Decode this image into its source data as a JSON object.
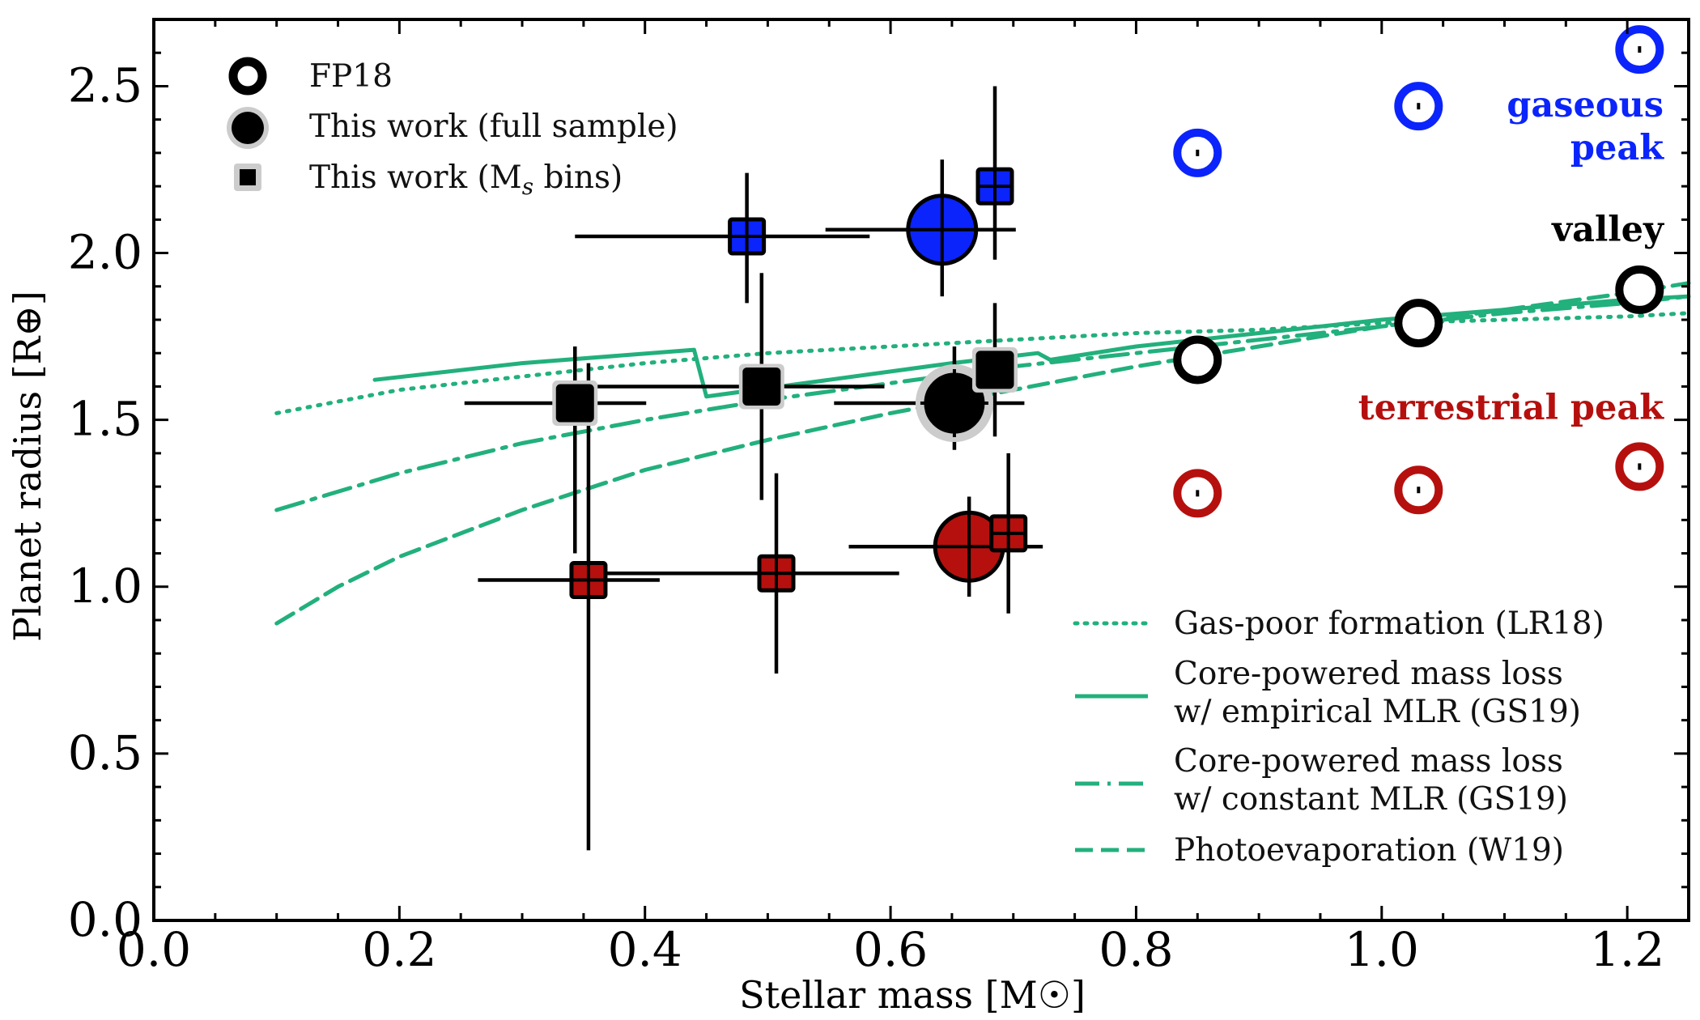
{
  "chart_data": {
    "type": "scatter",
    "xlabel": "Stellar mass [M☉]",
    "ylabel": "Planet radius [R⊕]",
    "xlim": [
      0.0,
      1.25
    ],
    "ylim": [
      0.0,
      2.7
    ],
    "xticks": [
      "0.0",
      "0.2",
      "0.4",
      "0.6",
      "0.8",
      "1.0",
      "1.2"
    ],
    "yticks": [
      "0.0",
      "0.5",
      "1.0",
      "1.5",
      "2.0",
      "2.5"
    ],
    "grid": false,
    "colors": {
      "gaseous": "#0b24fb",
      "terrestrial": "#b5100e",
      "valley": "#000000",
      "model": "#22b07d",
      "halo": "#cccccc"
    },
    "legend_markers": {
      "position": "top-left",
      "entries": [
        "FP18",
        "This work (full sample)",
        "This work (Ms bins)"
      ]
    },
    "legend_models": {
      "position": "bottom-right",
      "entries": [
        {
          "lines": [
            "Gas-poor formation (LR18)"
          ],
          "style": "dotted"
        },
        {
          "lines": [
            "Core-powered mass loss",
            "w/ empirical MLR (GS19)"
          ],
          "style": "solid"
        },
        {
          "lines": [
            "Core-powered mass loss",
            "w/ constant MLR (GS19)"
          ],
          "style": "dashdot"
        },
        {
          "lines": [
            "Photoevaporation (W19)"
          ],
          "style": "dashed"
        }
      ]
    },
    "annotations": {
      "gaseous": [
        "gaseous",
        "peak"
      ],
      "valley": "valley",
      "terrestrial": "terrestrial peak"
    },
    "series": [
      {
        "name": "FP18",
        "kind": "open-circle",
        "points": [
          {
            "group": "gaseous",
            "x": 0.85,
            "y": 2.3
          },
          {
            "group": "gaseous",
            "x": 1.03,
            "y": 2.44
          },
          {
            "group": "gaseous",
            "x": 1.21,
            "y": 2.61
          },
          {
            "group": "valley",
            "x": 0.85,
            "y": 1.68
          },
          {
            "group": "valley",
            "x": 1.03,
            "y": 1.79
          },
          {
            "group": "valley",
            "x": 1.21,
            "y": 1.89
          },
          {
            "group": "terrestrial",
            "x": 0.85,
            "y": 1.28
          },
          {
            "group": "terrestrial",
            "x": 1.03,
            "y": 1.29
          },
          {
            "group": "terrestrial",
            "x": 1.21,
            "y": 1.36
          }
        ]
      },
      {
        "name": "This work (full sample)",
        "kind": "big-circle",
        "points": [
          {
            "group": "gaseous",
            "x": 0.642,
            "y": 2.07,
            "xerr": [
              0.095,
              0.06
            ],
            "yerr": [
              0.2,
              0.21
            ]
          },
          {
            "group": "valley",
            "x": 0.652,
            "y": 1.55,
            "xerr": [
              0.098,
              0.057
            ],
            "yerr": [
              0.14,
              0.17
            ]
          },
          {
            "group": "terrestrial",
            "x": 0.664,
            "y": 1.12,
            "xerr": [
              0.098,
              0.06
            ],
            "yerr": [
              0.15,
              0.15
            ]
          }
        ]
      },
      {
        "name": "This work (Ms bins)",
        "kind": "square",
        "points": [
          {
            "group": "gaseous",
            "x": 0.483,
            "y": 2.05,
            "xerr": [
              0.14,
              0.1
            ],
            "yerr": [
              0.2,
              0.19
            ]
          },
          {
            "group": "gaseous",
            "x": 0.685,
            "y": 2.2,
            "xerr": [
              0.01,
              0.015
            ],
            "yerr": [
              0.22,
              0.3
            ]
          },
          {
            "group": "valley",
            "x": 0.343,
            "y": 1.55,
            "xerr": [
              0.09,
              0.058
            ],
            "yerr": [
              0.45,
              0.17
            ]
          },
          {
            "group": "valley",
            "x": 0.495,
            "y": 1.6,
            "xerr": [
              0.14,
              0.1
            ],
            "yerr": [
              0.34,
              0.34
            ]
          },
          {
            "group": "valley",
            "x": 0.685,
            "y": 1.65,
            "xerr": [
              0.01,
              0.015
            ],
            "yerr": [
              0.2,
              0.2
            ]
          },
          {
            "group": "terrestrial",
            "x": 0.354,
            "y": 1.02,
            "xerr": [
              0.09,
              0.058
            ],
            "yerr": [
              0.81,
              0.65
            ]
          },
          {
            "group": "terrestrial",
            "x": 0.507,
            "y": 1.04,
            "xerr": [
              0.14,
              0.1
            ],
            "yerr": [
              0.3,
              0.3
            ]
          },
          {
            "group": "terrestrial",
            "x": 0.696,
            "y": 1.16,
            "xerr": [
              0.01,
              0.015
            ],
            "yerr": [
              0.24,
              0.24
            ]
          }
        ]
      }
    ],
    "models": [
      {
        "name": "Gas-poor formation (LR18)",
        "style": "dotted",
        "x": [
          0.1,
          0.2,
          0.3,
          0.4,
          0.5,
          0.6,
          0.7,
          0.8,
          0.9,
          1.0,
          1.1,
          1.2,
          1.25
        ],
        "y": [
          1.52,
          1.59,
          1.63,
          1.67,
          1.7,
          1.72,
          1.74,
          1.76,
          1.77,
          1.79,
          1.8,
          1.81,
          1.82
        ]
      },
      {
        "name": "Core-powered mass loss w/ empirical MLR (GS19)",
        "style": "solid",
        "x": [
          0.18,
          0.3,
          0.44,
          0.45,
          0.55,
          0.65,
          0.72,
          0.73,
          0.8,
          0.9,
          1.0,
          1.1,
          1.2,
          1.25
        ],
        "y": [
          1.62,
          1.67,
          1.71,
          1.57,
          1.62,
          1.67,
          1.7,
          1.68,
          1.72,
          1.76,
          1.8,
          1.83,
          1.86,
          1.87
        ]
      },
      {
        "name": "Core-powered mass loss w/ constant MLR (GS19)",
        "style": "dashdot",
        "x": [
          0.1,
          0.2,
          0.3,
          0.4,
          0.5,
          0.6,
          0.7,
          0.8,
          0.9,
          1.0,
          1.1,
          1.2,
          1.25
        ],
        "y": [
          1.23,
          1.34,
          1.43,
          1.5,
          1.56,
          1.61,
          1.66,
          1.7,
          1.74,
          1.78,
          1.82,
          1.85,
          1.87
        ]
      },
      {
        "name": "Photoevaporation (W19)",
        "style": "dashed",
        "x": [
          0.1,
          0.15,
          0.2,
          0.3,
          0.4,
          0.5,
          0.6,
          0.7,
          0.8,
          0.9,
          1.0,
          1.1,
          1.2,
          1.25
        ],
        "y": [
          0.89,
          1.0,
          1.09,
          1.23,
          1.35,
          1.44,
          1.52,
          1.59,
          1.66,
          1.72,
          1.78,
          1.83,
          1.88,
          1.91
        ]
      }
    ]
  }
}
